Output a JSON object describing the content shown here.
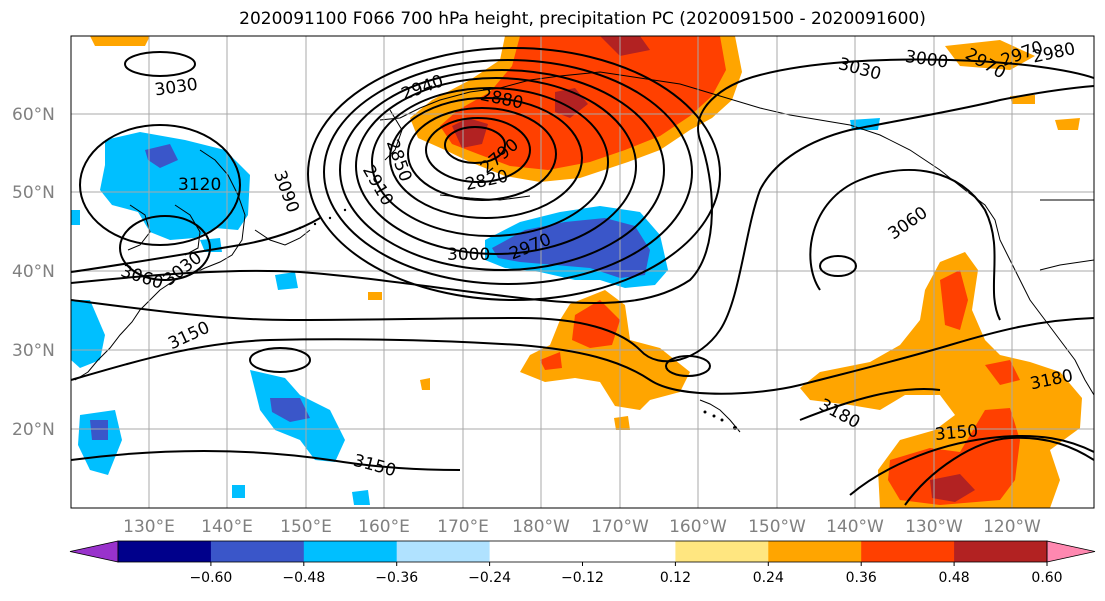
{
  "title": "2020091100 F066 700 hPa height, precipitation PC (2020091500 - 2020091600)",
  "map": {
    "lat_labels": [
      "60°N",
      "50°N",
      "40°N",
      "30°N",
      "20°N"
    ],
    "lon_labels": [
      "130°E",
      "140°E",
      "150°E",
      "160°E",
      "170°E",
      "180°W",
      "170°W",
      "160°W",
      "150°W",
      "140°W",
      "130°W",
      "120°W"
    ],
    "contour_labels": [
      {
        "text": "3030"
      },
      {
        "text": "2940"
      },
      {
        "text": "2880"
      },
      {
        "text": "2850"
      },
      {
        "text": "2790"
      },
      {
        "text": "2820"
      },
      {
        "text": "2910"
      },
      {
        "text": "3090"
      },
      {
        "text": "3120"
      },
      {
        "text": "3060"
      },
      {
        "text": "3030"
      },
      {
        "text": "3000"
      },
      {
        "text": "2970"
      },
      {
        "text": "3150"
      },
      {
        "text": "3150"
      },
      {
        "text": "3030"
      },
      {
        "text": "3000"
      },
      {
        "text": "2970"
      },
      {
        "text": "2980"
      },
      {
        "text": "2970"
      },
      {
        "text": "3060"
      },
      {
        "text": "3180"
      },
      {
        "text": "3180"
      },
      {
        "text": "3150"
      }
    ]
  },
  "colorbar": {
    "colors": [
      "#9932cc",
      "#00008b",
      "#3a56c9",
      "#00bfff",
      "#b0e2ff",
      "#ffffff",
      "#ffffff",
      "#ffe680",
      "#ffa500",
      "#ff4000",
      "#b22222",
      "#ff88b0"
    ],
    "tick_labels": [
      "−0.60",
      "−0.48",
      "−0.36",
      "−0.24",
      "−0.12",
      "0.12",
      "0.24",
      "0.36",
      "0.48",
      "0.60"
    ]
  }
}
